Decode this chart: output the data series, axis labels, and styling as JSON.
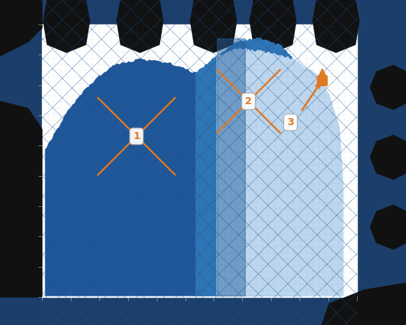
{
  "figsize": [
    5.8,
    4.65
  ],
  "dpi": 100,
  "white": "#ffffff",
  "near_black": "#1a1a1a",
  "dark_blue_gear": "#1b3f6a",
  "region1_color": "#1f5799",
  "region2_color": "#2e75b6",
  "region3_color": "#bdd7ee",
  "region2_strip_color": "#4a90c4",
  "orange": "#e07820",
  "grid_diag_color": "#1b4f8a",
  "grid_dot_color": "#2060a0",
  "label_circle_edge": "#aaaaaa",
  "xlim": [
    0,
    10
  ],
  "ylim": [
    0,
    10
  ],
  "gear_dark": "#111111",
  "gear_blue": "#1b3f6a"
}
